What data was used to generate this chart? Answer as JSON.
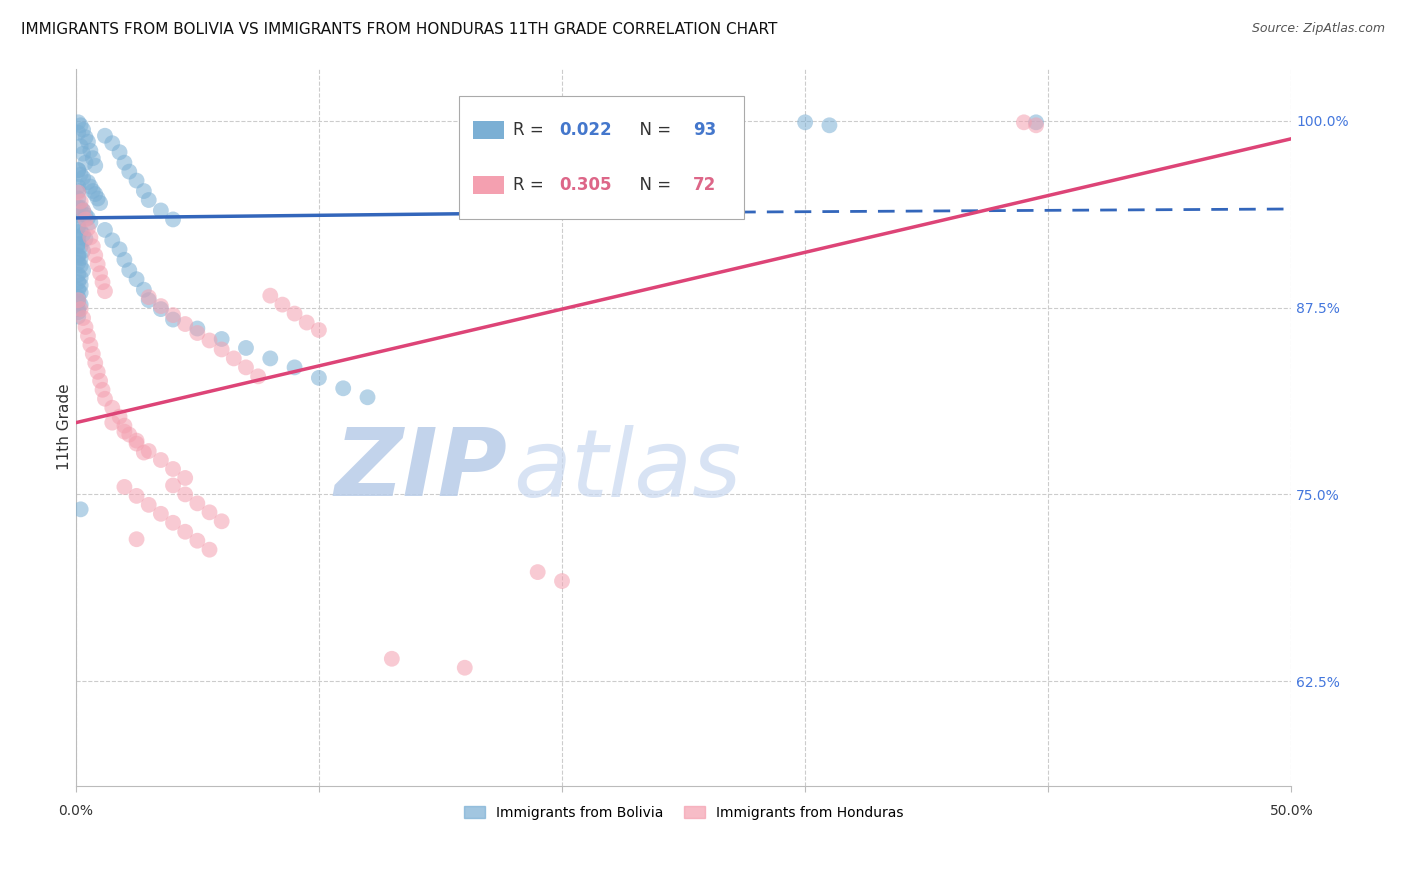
{
  "title": "IMMIGRANTS FROM BOLIVIA VS IMMIGRANTS FROM HONDURAS 11TH GRADE CORRELATION CHART",
  "source": "Source: ZipAtlas.com",
  "ylabel": "11th Grade",
  "ytick_labels": [
    "100.0%",
    "87.5%",
    "75.0%",
    "62.5%"
  ],
  "ytick_positions": [
    1.0,
    0.875,
    0.75,
    0.625
  ],
  "xlim": [
    0.0,
    0.5
  ],
  "ylim": [
    0.555,
    1.035
  ],
  "bolivia_color": "#7BAFD4",
  "honduras_color": "#F4A0B0",
  "bolivia_R": "0.022",
  "bolivia_N": "93",
  "honduras_R": "0.305",
  "honduras_N": "72",
  "bolivia_scatter": [
    [
      0.001,
      0.999
    ],
    [
      0.002,
      0.997
    ],
    [
      0.003,
      0.994
    ],
    [
      0.001,
      0.992
    ],
    [
      0.004,
      0.989
    ],
    [
      0.005,
      0.986
    ],
    [
      0.002,
      0.983
    ],
    [
      0.006,
      0.98
    ],
    [
      0.003,
      0.978
    ],
    [
      0.007,
      0.975
    ],
    [
      0.004,
      0.972
    ],
    [
      0.008,
      0.97
    ],
    [
      0.001,
      0.967
    ],
    [
      0.002,
      0.964
    ],
    [
      0.003,
      0.962
    ],
    [
      0.005,
      0.959
    ],
    [
      0.006,
      0.956
    ],
    [
      0.007,
      0.953
    ],
    [
      0.008,
      0.951
    ],
    [
      0.009,
      0.948
    ],
    [
      0.01,
      0.945
    ],
    [
      0.002,
      0.942
    ],
    [
      0.003,
      0.94
    ],
    [
      0.004,
      0.937
    ],
    [
      0.005,
      0.935
    ],
    [
      0.006,
      0.932
    ],
    [
      0.001,
      0.929
    ],
    [
      0.002,
      0.926
    ],
    [
      0.003,
      0.924
    ],
    [
      0.004,
      0.921
    ],
    [
      0.001,
      0.918
    ],
    [
      0.002,
      0.916
    ],
    [
      0.003,
      0.913
    ],
    [
      0.001,
      0.91
    ],
    [
      0.002,
      0.908
    ],
    [
      0.001,
      0.905
    ],
    [
      0.002,
      0.903
    ],
    [
      0.003,
      0.9
    ],
    [
      0.001,
      0.897
    ],
    [
      0.002,
      0.895
    ],
    [
      0.001,
      0.892
    ],
    [
      0.002,
      0.89
    ],
    [
      0.001,
      0.887
    ],
    [
      0.002,
      0.885
    ],
    [
      0.001,
      0.882
    ],
    [
      0.001,
      0.879
    ],
    [
      0.002,
      0.877
    ],
    [
      0.001,
      0.874
    ],
    [
      0.001,
      0.872
    ],
    [
      0.001,
      0.869
    ],
    [
      0.001,
      0.967
    ],
    [
      0.001,
      0.956
    ],
    [
      0.001,
      0.942
    ],
    [
      0.001,
      0.937
    ],
    [
      0.001,
      0.93
    ],
    [
      0.001,
      0.922
    ],
    [
      0.001,
      0.917
    ],
    [
      0.001,
      0.909
    ],
    [
      0.001,
      0.953
    ],
    [
      0.001,
      0.948
    ],
    [
      0.012,
      0.99
    ],
    [
      0.015,
      0.985
    ],
    [
      0.018,
      0.979
    ],
    [
      0.02,
      0.972
    ],
    [
      0.022,
      0.966
    ],
    [
      0.025,
      0.96
    ],
    [
      0.028,
      0.953
    ],
    [
      0.03,
      0.947
    ],
    [
      0.035,
      0.94
    ],
    [
      0.04,
      0.934
    ],
    [
      0.012,
      0.927
    ],
    [
      0.015,
      0.92
    ],
    [
      0.018,
      0.914
    ],
    [
      0.02,
      0.907
    ],
    [
      0.022,
      0.9
    ],
    [
      0.025,
      0.894
    ],
    [
      0.028,
      0.887
    ],
    [
      0.03,
      0.88
    ],
    [
      0.035,
      0.874
    ],
    [
      0.04,
      0.867
    ],
    [
      0.05,
      0.861
    ],
    [
      0.06,
      0.854
    ],
    [
      0.07,
      0.848
    ],
    [
      0.08,
      0.841
    ],
    [
      0.09,
      0.835
    ],
    [
      0.1,
      0.828
    ],
    [
      0.11,
      0.821
    ],
    [
      0.12,
      0.815
    ],
    [
      0.002,
      0.74
    ],
    [
      0.27,
      0.999
    ],
    [
      0.3,
      0.999
    ],
    [
      0.31,
      0.997
    ],
    [
      0.395,
      0.999
    ]
  ],
  "honduras_scatter": [
    [
      0.001,
      0.952
    ],
    [
      0.002,
      0.946
    ],
    [
      0.003,
      0.94
    ],
    [
      0.004,
      0.934
    ],
    [
      0.005,
      0.928
    ],
    [
      0.006,
      0.922
    ],
    [
      0.007,
      0.916
    ],
    [
      0.008,
      0.91
    ],
    [
      0.009,
      0.904
    ],
    [
      0.01,
      0.898
    ],
    [
      0.011,
      0.892
    ],
    [
      0.012,
      0.886
    ],
    [
      0.001,
      0.88
    ],
    [
      0.002,
      0.874
    ],
    [
      0.003,
      0.868
    ],
    [
      0.004,
      0.862
    ],
    [
      0.005,
      0.856
    ],
    [
      0.006,
      0.85
    ],
    [
      0.007,
      0.844
    ],
    [
      0.008,
      0.838
    ],
    [
      0.009,
      0.832
    ],
    [
      0.01,
      0.826
    ],
    [
      0.011,
      0.82
    ],
    [
      0.012,
      0.814
    ],
    [
      0.015,
      0.808
    ],
    [
      0.018,
      0.802
    ],
    [
      0.02,
      0.796
    ],
    [
      0.022,
      0.79
    ],
    [
      0.025,
      0.784
    ],
    [
      0.028,
      0.778
    ],
    [
      0.03,
      0.882
    ],
    [
      0.035,
      0.876
    ],
    [
      0.04,
      0.87
    ],
    [
      0.045,
      0.864
    ],
    [
      0.05,
      0.858
    ],
    [
      0.055,
      0.853
    ],
    [
      0.06,
      0.847
    ],
    [
      0.065,
      0.841
    ],
    [
      0.07,
      0.835
    ],
    [
      0.075,
      0.829
    ],
    [
      0.08,
      0.883
    ],
    [
      0.085,
      0.877
    ],
    [
      0.09,
      0.871
    ],
    [
      0.095,
      0.865
    ],
    [
      0.1,
      0.86
    ],
    [
      0.015,
      0.798
    ],
    [
      0.02,
      0.792
    ],
    [
      0.025,
      0.786
    ],
    [
      0.03,
      0.779
    ],
    [
      0.035,
      0.773
    ],
    [
      0.04,
      0.767
    ],
    [
      0.045,
      0.761
    ],
    [
      0.02,
      0.755
    ],
    [
      0.025,
      0.749
    ],
    [
      0.03,
      0.743
    ],
    [
      0.035,
      0.737
    ],
    [
      0.04,
      0.731
    ],
    [
      0.045,
      0.725
    ],
    [
      0.05,
      0.719
    ],
    [
      0.055,
      0.713
    ],
    [
      0.04,
      0.756
    ],
    [
      0.045,
      0.75
    ],
    [
      0.05,
      0.744
    ],
    [
      0.055,
      0.738
    ],
    [
      0.06,
      0.732
    ],
    [
      0.025,
      0.72
    ],
    [
      0.19,
      0.698
    ],
    [
      0.2,
      0.692
    ],
    [
      0.13,
      0.64
    ],
    [
      0.16,
      0.634
    ],
    [
      0.39,
      0.999
    ],
    [
      0.395,
      0.997
    ]
  ],
  "bolivia_line_color": "#3366BB",
  "honduras_line_color": "#DD4477",
  "bolivia_trendline": [
    [
      0.0,
      0.935
    ],
    [
      0.17,
      0.938
    ]
  ],
  "bolivia_trendline_dashed": [
    [
      0.17,
      0.938
    ],
    [
      0.5,
      0.941
    ]
  ],
  "honduras_trendline": [
    [
      0.0,
      0.798
    ],
    [
      0.5,
      0.988
    ]
  ],
  "grid_color": "#CCCCCC",
  "watermark_zip_color": "#C8D8F0",
  "watermark_atlas_color": "#C8D8F0",
  "background_color": "#FFFFFF",
  "title_fontsize": 11,
  "right_tick_color": "#4477DD",
  "legend_box_color": "#AAAAAA",
  "legend_color_blue": "#4477CC",
  "legend_color_pink": "#DD6688"
}
